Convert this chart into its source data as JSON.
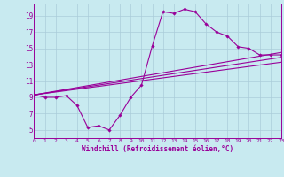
{
  "xlabel": "Windchill (Refroidissement éolien,°C)",
  "bg_color": "#c8eaf0",
  "grid_color": "#aaccda",
  "line_color": "#990099",
  "x_min": 0,
  "x_max": 23,
  "y_min": 4,
  "y_max": 20.5,
  "yticks": [
    5,
    7,
    9,
    11,
    13,
    15,
    17,
    19
  ],
  "xticks": [
    0,
    1,
    2,
    3,
    4,
    5,
    6,
    7,
    8,
    9,
    10,
    11,
    12,
    13,
    14,
    15,
    16,
    17,
    18,
    19,
    20,
    21,
    22,
    23
  ],
  "series1_x": [
    0,
    1,
    2,
    3,
    4,
    5,
    6,
    7,
    8,
    9,
    10,
    11,
    12,
    13,
    14,
    15,
    16,
    17,
    18,
    19,
    20,
    21,
    22,
    23
  ],
  "series1_y": [
    9.3,
    9.0,
    9.0,
    9.2,
    8.0,
    5.3,
    5.5,
    5.0,
    6.8,
    9.0,
    10.5,
    15.3,
    19.5,
    19.3,
    19.8,
    19.5,
    18.0,
    17.0,
    16.5,
    15.2,
    15.0,
    14.2,
    14.2,
    14.2
  ],
  "series2_x": [
    0,
    23
  ],
  "series2_y": [
    9.3,
    14.5
  ],
  "series3_x": [
    0,
    23
  ],
  "series3_y": [
    9.3,
    13.3
  ],
  "series4_x": [
    0,
    23
  ],
  "series4_y": [
    9.3,
    13.9
  ]
}
